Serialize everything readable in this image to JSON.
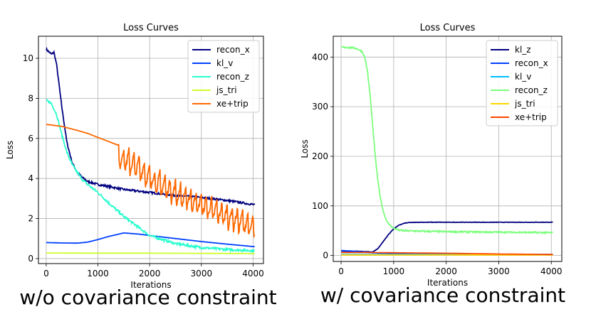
{
  "chart_data": [
    {
      "type": "line",
      "title": "Loss Curves",
      "xlabel": "Iterations",
      "ylabel": "Loss",
      "caption": "w/o covariance constraint",
      "xlim": [
        -150,
        4200
      ],
      "ylim": [
        -0.25,
        11.1
      ],
      "xticks": [
        0,
        1000,
        2000,
        3000,
        4000
      ],
      "yticks": [
        0,
        2,
        4,
        6,
        8,
        10
      ],
      "grid": true,
      "legend": "top-right",
      "series": [
        {
          "name": "recon_x",
          "color": "#000080",
          "noise": 0.05,
          "x": [
            0,
            100,
            150,
            200,
            300,
            400,
            500,
            600,
            700,
            800,
            1000,
            1200,
            1500,
            2000,
            2500,
            3000,
            3500,
            4000
          ],
          "y": [
            10.45,
            10.2,
            10.3,
            9.7,
            7.6,
            5.8,
            4.8,
            4.3,
            4.05,
            3.85,
            3.7,
            3.6,
            3.45,
            3.3,
            3.15,
            3.05,
            2.9,
            2.7
          ]
        },
        {
          "name": "kl_v",
          "color": "#0040ff",
          "noise": 0.0,
          "x": [
            0,
            300,
            600,
            800,
            1000,
            1200,
            1500,
            1800,
            2000,
            2500,
            3000,
            3500,
            4000
          ],
          "y": [
            0.8,
            0.78,
            0.77,
            0.82,
            0.95,
            1.1,
            1.28,
            1.22,
            1.15,
            1.0,
            0.85,
            0.72,
            0.6
          ]
        },
        {
          "name": "recon_z",
          "color": "#29ffce",
          "noise": 0.06,
          "x": [
            0,
            100,
            200,
            300,
            400,
            500,
            600,
            700,
            800,
            1000,
            1200,
            1500,
            2000,
            2500,
            3000,
            3500,
            4000
          ],
          "y": [
            7.9,
            7.75,
            7.2,
            6.2,
            5.3,
            4.7,
            4.3,
            3.95,
            3.7,
            3.3,
            2.8,
            2.1,
            1.15,
            0.75,
            0.55,
            0.45,
            0.4
          ]
        },
        {
          "name": "js_tri",
          "color": "#ceff29",
          "noise": 0.0,
          "x": [
            0,
            1000,
            2000,
            3000,
            4000
          ],
          "y": [
            0.28,
            0.27,
            0.27,
            0.26,
            0.25
          ]
        },
        {
          "name": "xe+trip",
          "color": "#ff6800",
          "noise": 0.0,
          "x": [
            0,
            300,
            600,
            800,
            1000,
            1200,
            1500,
            1800,
            2000,
            2300,
            2600,
            3000,
            3400,
            3800,
            4000
          ],
          "y": [
            6.7,
            6.6,
            6.4,
            6.25,
            6.05,
            5.85,
            5.55,
            5.1,
            4.6,
            4.15,
            3.7,
            3.25,
            2.8,
            2.4,
            2.1
          ],
          "spikes": {
            "start": 1400,
            "period": 100,
            "amp": 1.2
          }
        }
      ]
    },
    {
      "type": "line",
      "title": "Loss Curves",
      "xlabel": "Iterations",
      "ylabel": "Loss",
      "caption": "w/ covariance constraint",
      "xlim": [
        -150,
        4200
      ],
      "ylim": [
        -12,
        442
      ],
      "xticks": [
        0,
        1000,
        2000,
        3000,
        4000
      ],
      "yticks": [
        0,
        100,
        200,
        300,
        400
      ],
      "grid": true,
      "legend": "top-right",
      "series": [
        {
          "name": "kl_z",
          "color": "#000080",
          "noise": 0.4,
          "x": [
            0,
            300,
            500,
            600,
            700,
            800,
            900,
            1000,
            1100,
            1200,
            1300,
            1500,
            2000,
            3000,
            4000
          ],
          "y": [
            9,
            8.5,
            7.5,
            7,
            14,
            28,
            42,
            54,
            61,
            65,
            66.5,
            67,
            67,
            67,
            67
          ]
        },
        {
          "name": "recon_x",
          "color": "#0040ff",
          "noise": 0.0,
          "x": [
            0,
            200,
            400,
            700,
            1000,
            2000,
            3000,
            4000
          ],
          "y": [
            10,
            9,
            7,
            5,
            4,
            3,
            2.5,
            2
          ]
        },
        {
          "name": "kl_v",
          "color": "#00bfff",
          "noise": 0.0,
          "x": [
            0,
            1000,
            2000,
            3000,
            4000
          ],
          "y": [
            2,
            2,
            2,
            2,
            2
          ]
        },
        {
          "name": "recon_z",
          "color": "#7bff7b",
          "noise": 1.6,
          "x": [
            0,
            200,
            300,
            400,
            450,
            500,
            550,
            600,
            650,
            700,
            750,
            800,
            850,
            900,
            1000,
            1100,
            1200,
            1500,
            2000,
            3000,
            4000
          ],
          "y": [
            420,
            419,
            417,
            411,
            400,
            372,
            325,
            262,
            200,
            150,
            115,
            90,
            74,
            64,
            55,
            51,
            50,
            49,
            48,
            47,
            46
          ]
        },
        {
          "name": "js_tri",
          "color": "#ffd700",
          "noise": 0.0,
          "x": [
            0,
            1000,
            2000,
            3000,
            4000
          ],
          "y": [
            1,
            1,
            1,
            1,
            1
          ]
        },
        {
          "name": "xe+trip",
          "color": "#ff4500",
          "noise": 0.0,
          "x": [
            0,
            500,
            1000,
            2000,
            3000,
            4000
          ],
          "y": [
            6,
            6,
            5.5,
            4.5,
            3,
            2
          ]
        }
      ]
    }
  ]
}
